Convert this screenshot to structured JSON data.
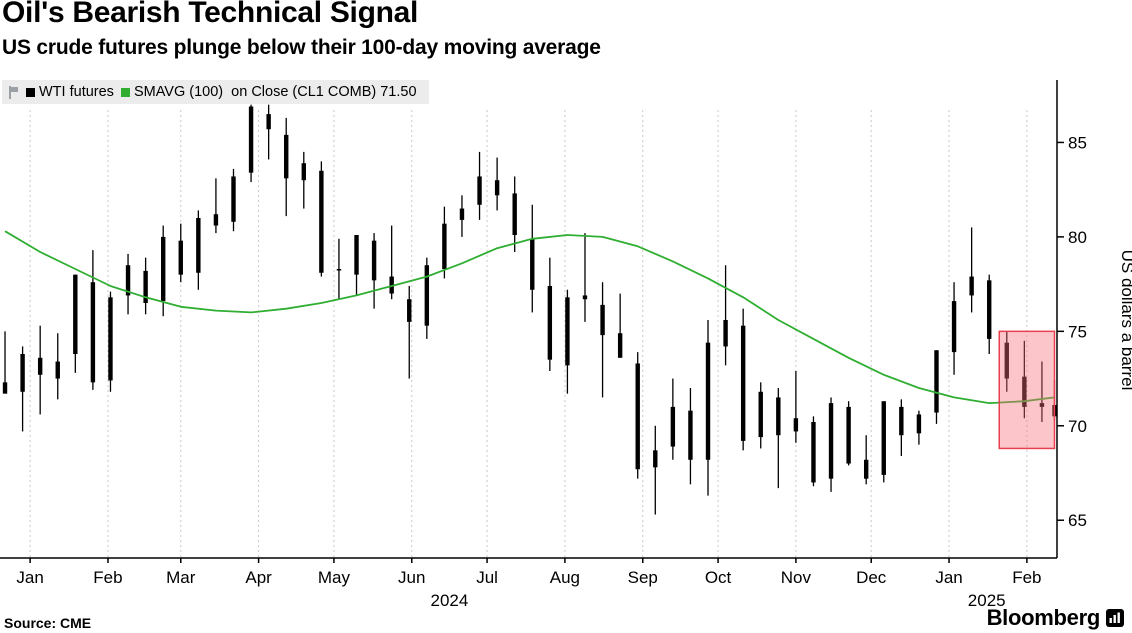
{
  "header": {
    "title": "Oil's Bearish Technical Signal",
    "subtitle": "US crude futures plunge below their 100-day moving average"
  },
  "legend": {
    "wti_label": "WTI futures",
    "smavg_label": "SMAVG (100)  on Close (CL1 COMB) 71.50"
  },
  "footer": {
    "source": "Source: CME",
    "brand": "Bloomberg"
  },
  "axis": {
    "y_label": "US dollars a barrel",
    "y_ticks": [
      65,
      70,
      75,
      80,
      85
    ],
    "x_ticks": [
      {
        "date": "2024-01-08",
        "label": "Jan"
      },
      {
        "date": "2024-02-08",
        "label": "Feb"
      },
      {
        "date": "2024-03-08",
        "label": "Mar"
      },
      {
        "date": "2024-04-08",
        "label": "Apr"
      },
      {
        "date": "2024-05-08",
        "label": "May"
      },
      {
        "date": "2024-06-08",
        "label": "Jun"
      },
      {
        "date": "2024-07-08",
        "label": "Jul"
      },
      {
        "date": "2024-08-08",
        "label": "Aug"
      },
      {
        "date": "2024-09-08",
        "label": "Sep"
      },
      {
        "date": "2024-10-08",
        "label": "Oct"
      },
      {
        "date": "2024-11-08",
        "label": "Nov"
      },
      {
        "date": "2024-12-08",
        "label": "Dec"
      },
      {
        "date": "2025-01-08",
        "label": "Jan"
      },
      {
        "date": "2025-02-08",
        "label": "Feb"
      }
    ],
    "year_labels": [
      {
        "date": "2024-06-23",
        "label": "2024"
      },
      {
        "date": "2025-01-23",
        "label": "2025"
      }
    ]
  },
  "colors": {
    "bars": "#000000",
    "smavg": "#2fae32",
    "highlight_fill": "#f76d79",
    "highlight_stroke": "#e8404e",
    "grid": "#c9c9c9",
    "axis": "#000000",
    "legend_bg": "#ececec"
  },
  "chart_data": {
    "type": "candlestick",
    "granularity": "weekly",
    "title": "Oil's Bearish Technical Signal",
    "subtitle": "US crude futures plunge below their 100-day moving average",
    "ylabel": "US dollars a barrel",
    "y_domain": [
      63.0,
      87.3
    ],
    "x_domain": [
      "2023-12-27",
      "2025-02-20"
    ],
    "series": [
      {
        "name": "WTI futures",
        "type": "ohlc",
        "bars": [
          [
            "2023-12-29",
            72.3,
            75.0,
            71.8,
            71.7
          ],
          [
            "2024-01-05",
            71.8,
            74.2,
            69.7,
            73.8
          ],
          [
            "2024-01-12",
            73.6,
            75.3,
            70.6,
            72.7
          ],
          [
            "2024-01-19",
            72.5,
            74.9,
            71.4,
            73.4
          ],
          [
            "2024-01-26",
            73.8,
            78.0,
            72.8,
            78.0
          ],
          [
            "2024-02-02",
            77.6,
            79.3,
            71.9,
            72.3
          ],
          [
            "2024-02-09",
            72.4,
            77.1,
            71.8,
            76.8
          ],
          [
            "2024-02-16",
            76.9,
            79.1,
            75.9,
            78.5
          ],
          [
            "2024-02-23",
            78.2,
            78.9,
            75.9,
            76.5
          ],
          [
            "2024-03-01",
            76.6,
            80.6,
            75.8,
            80.0
          ],
          [
            "2024-03-08",
            79.8,
            80.7,
            77.6,
            78.0
          ],
          [
            "2024-03-15",
            78.1,
            81.4,
            77.2,
            81.0
          ],
          [
            "2024-03-22",
            81.2,
            83.1,
            80.2,
            80.6
          ],
          [
            "2024-03-29",
            80.8,
            83.6,
            80.3,
            83.2
          ],
          [
            "2024-04-05",
            83.4,
            87.0,
            82.9,
            86.9
          ],
          [
            "2024-04-12",
            86.5,
            87.0,
            84.1,
            85.7
          ],
          [
            "2024-04-19",
            85.4,
            86.3,
            81.1,
            83.1
          ],
          [
            "2024-04-26",
            83.0,
            84.5,
            81.5,
            83.9
          ],
          [
            "2024-05-03",
            83.5,
            84.0,
            77.9,
            78.1
          ],
          [
            "2024-05-10",
            78.3,
            79.9,
            76.7,
            78.3
          ],
          [
            "2024-05-17",
            78.0,
            80.1,
            76.9,
            80.1
          ],
          [
            "2024-05-24",
            79.8,
            80.2,
            76.2,
            77.7
          ],
          [
            "2024-05-31",
            77.9,
            80.6,
            76.7,
            77.0
          ],
          [
            "2024-06-07",
            76.7,
            77.4,
            72.5,
            75.5
          ],
          [
            "2024-06-14",
            75.3,
            78.9,
            74.6,
            78.5
          ],
          [
            "2024-06-21",
            78.3,
            81.6,
            77.8,
            80.7
          ],
          [
            "2024-06-28",
            80.9,
            82.2,
            80.0,
            81.5
          ],
          [
            "2024-07-05",
            81.7,
            84.5,
            80.9,
            83.2
          ],
          [
            "2024-07-12",
            83.0,
            84.2,
            81.4,
            82.2
          ],
          [
            "2024-07-19",
            82.3,
            83.2,
            79.2,
            80.1
          ],
          [
            "2024-07-26",
            79.9,
            81.7,
            76.0,
            77.2
          ],
          [
            "2024-08-02",
            77.4,
            78.9,
            72.9,
            73.5
          ],
          [
            "2024-08-09",
            73.2,
            77.2,
            71.7,
            76.8
          ],
          [
            "2024-08-16",
            76.9,
            80.2,
            75.5,
            76.7
          ],
          [
            "2024-08-23",
            76.4,
            77.6,
            71.5,
            74.8
          ],
          [
            "2024-08-30",
            74.9,
            77.0,
            73.6,
            73.6
          ],
          [
            "2024-09-06",
            73.3,
            73.9,
            67.2,
            67.7
          ],
          [
            "2024-09-13",
            67.8,
            70.0,
            65.3,
            68.7
          ],
          [
            "2024-09-20",
            68.9,
            72.5,
            68.2,
            71.0
          ],
          [
            "2024-09-27",
            70.8,
            72.0,
            66.9,
            68.2
          ],
          [
            "2024-10-04",
            68.2,
            75.6,
            66.3,
            74.4
          ],
          [
            "2024-10-11",
            74.2,
            78.5,
            73.2,
            75.6
          ],
          [
            "2024-10-18",
            75.3,
            76.2,
            68.7,
            69.2
          ],
          [
            "2024-10-25",
            69.4,
            72.3,
            68.8,
            71.8
          ],
          [
            "2024-11-01",
            71.5,
            72.0,
            66.7,
            69.5
          ],
          [
            "2024-11-08",
            69.7,
            72.9,
            69.1,
            70.4
          ],
          [
            "2024-11-15",
            70.2,
            70.5,
            66.8,
            67.0
          ],
          [
            "2024-11-22",
            67.2,
            71.5,
            66.5,
            71.2
          ],
          [
            "2024-11-29",
            71.0,
            71.3,
            67.9,
            68.0
          ],
          [
            "2024-12-06",
            68.2,
            69.5,
            66.9,
            67.2
          ],
          [
            "2024-12-13",
            67.4,
            71.3,
            67.0,
            71.3
          ],
          [
            "2024-12-20",
            71.0,
            71.4,
            68.4,
            69.5
          ],
          [
            "2024-12-27",
            69.6,
            70.8,
            69.0,
            70.6
          ],
          [
            "2025-01-03",
            70.7,
            74.0,
            70.1,
            74.0
          ],
          [
            "2025-01-10",
            73.9,
            77.6,
            72.7,
            76.6
          ],
          [
            "2025-01-17",
            76.9,
            80.5,
            76.0,
            77.9
          ],
          [
            "2025-01-24",
            77.7,
            78.0,
            73.8,
            74.6
          ],
          [
            "2025-01-31",
            74.4,
            75.0,
            71.8,
            72.5
          ],
          [
            "2025-02-07",
            72.6,
            74.5,
            70.4,
            71.0
          ],
          [
            "2025-02-14",
            71.2,
            73.4,
            70.2,
            71.0
          ],
          [
            "2025-02-19",
            71.1,
            72.4,
            70.3,
            70.5
          ]
        ]
      },
      {
        "name": "SMAVG (100) on Close (CL1 COMB)",
        "type": "line",
        "last_value": 71.5,
        "points": [
          [
            "2023-12-29",
            80.3
          ],
          [
            "2024-01-12",
            79.2
          ],
          [
            "2024-01-26",
            78.3
          ],
          [
            "2024-02-09",
            77.4
          ],
          [
            "2024-02-23",
            76.8
          ],
          [
            "2024-03-08",
            76.3
          ],
          [
            "2024-03-22",
            76.1
          ],
          [
            "2024-04-05",
            76.0
          ],
          [
            "2024-04-19",
            76.2
          ],
          [
            "2024-05-03",
            76.5
          ],
          [
            "2024-05-17",
            76.9
          ],
          [
            "2024-05-31",
            77.4
          ],
          [
            "2024-06-14",
            77.9
          ],
          [
            "2024-06-28",
            78.6
          ],
          [
            "2024-07-12",
            79.4
          ],
          [
            "2024-07-26",
            79.9
          ],
          [
            "2024-08-09",
            80.1
          ],
          [
            "2024-08-23",
            80.0
          ],
          [
            "2024-09-06",
            79.5
          ],
          [
            "2024-09-20",
            78.7
          ],
          [
            "2024-10-04",
            77.8
          ],
          [
            "2024-10-18",
            76.8
          ],
          [
            "2024-11-01",
            75.6
          ],
          [
            "2024-11-15",
            74.6
          ],
          [
            "2024-11-29",
            73.6
          ],
          [
            "2024-12-13",
            72.7
          ],
          [
            "2024-12-27",
            72.0
          ],
          [
            "2025-01-10",
            71.5
          ],
          [
            "2025-01-24",
            71.2
          ],
          [
            "2025-02-07",
            71.3
          ],
          [
            "2025-02-19",
            71.5
          ]
        ]
      }
    ],
    "highlight_region": {
      "x0": "2025-01-28",
      "x1": "2025-02-19",
      "y0": 68.8,
      "y1": 75.0
    },
    "legend_position": "top-left",
    "grid": "vertical-dashed"
  }
}
